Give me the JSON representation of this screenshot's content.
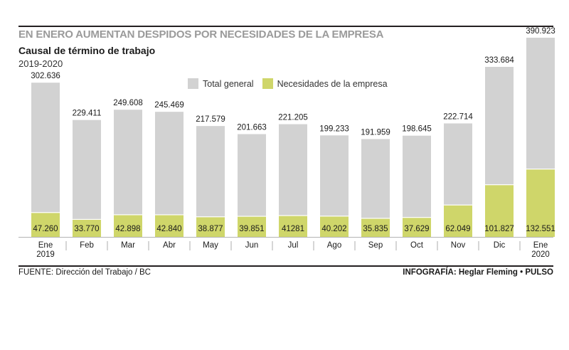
{
  "headline": "EN ENERO AUMENTAN DESPIDOS POR NECESIDADES DE LA EMPRESA",
  "subtitle": "Causal de término de trabajo",
  "period": "2019-2020",
  "legend": {
    "total": "Total general",
    "necesidades": "Necesidades de la empresa"
  },
  "colors": {
    "total": "#d2d2d2",
    "necesidades": "#cfd66a",
    "rule": "#231f20"
  },
  "source": "FUENTE: Dirección del Trabajo / BC",
  "credit_prefix": "INFOGRAFÍA: Heglar Fleming •",
  "credit_brand": "PULSO",
  "chart_data": {
    "type": "bar",
    "title": "Causal de término de trabajo",
    "categories": [
      [
        "Ene",
        "2019"
      ],
      [
        "Feb"
      ],
      [
        "Mar"
      ],
      [
        "Abr"
      ],
      [
        "May"
      ],
      [
        "Jun"
      ],
      [
        "Jul"
      ],
      [
        "Ago"
      ],
      [
        "Sep"
      ],
      [
        "Oct"
      ],
      [
        "Nov"
      ],
      [
        "Dic"
      ],
      [
        "Ene",
        "2020"
      ]
    ],
    "series": [
      {
        "name": "Total general",
        "values": [
          302636,
          229411,
          249608,
          245469,
          217579,
          201663,
          221205,
          199233,
          191959,
          198645,
          222714,
          333684,
          390923
        ],
        "labels": [
          "302.636",
          "229.411",
          "249.608",
          "245.469",
          "217.579",
          "201.663",
          "221.205",
          "199.233",
          "191.959",
          "198.645",
          "222.714",
          "333.684",
          "390.923"
        ]
      },
      {
        "name": "Necesidades de la empresa",
        "values": [
          47260,
          33770,
          42898,
          42840,
          38877,
          39851,
          41281,
          40202,
          35835,
          37629,
          62049,
          101827,
          132551
        ],
        "labels": [
          "47.260",
          "33.770",
          "42.898",
          "42.840",
          "38.877",
          "39.851",
          "41281",
          "40.202",
          "35.835",
          "37.629",
          "62.049",
          "101.827",
          "132.551"
        ]
      }
    ],
    "ylim": [
      0,
      400000
    ],
    "legend_position": "top-center",
    "grid": false
  }
}
